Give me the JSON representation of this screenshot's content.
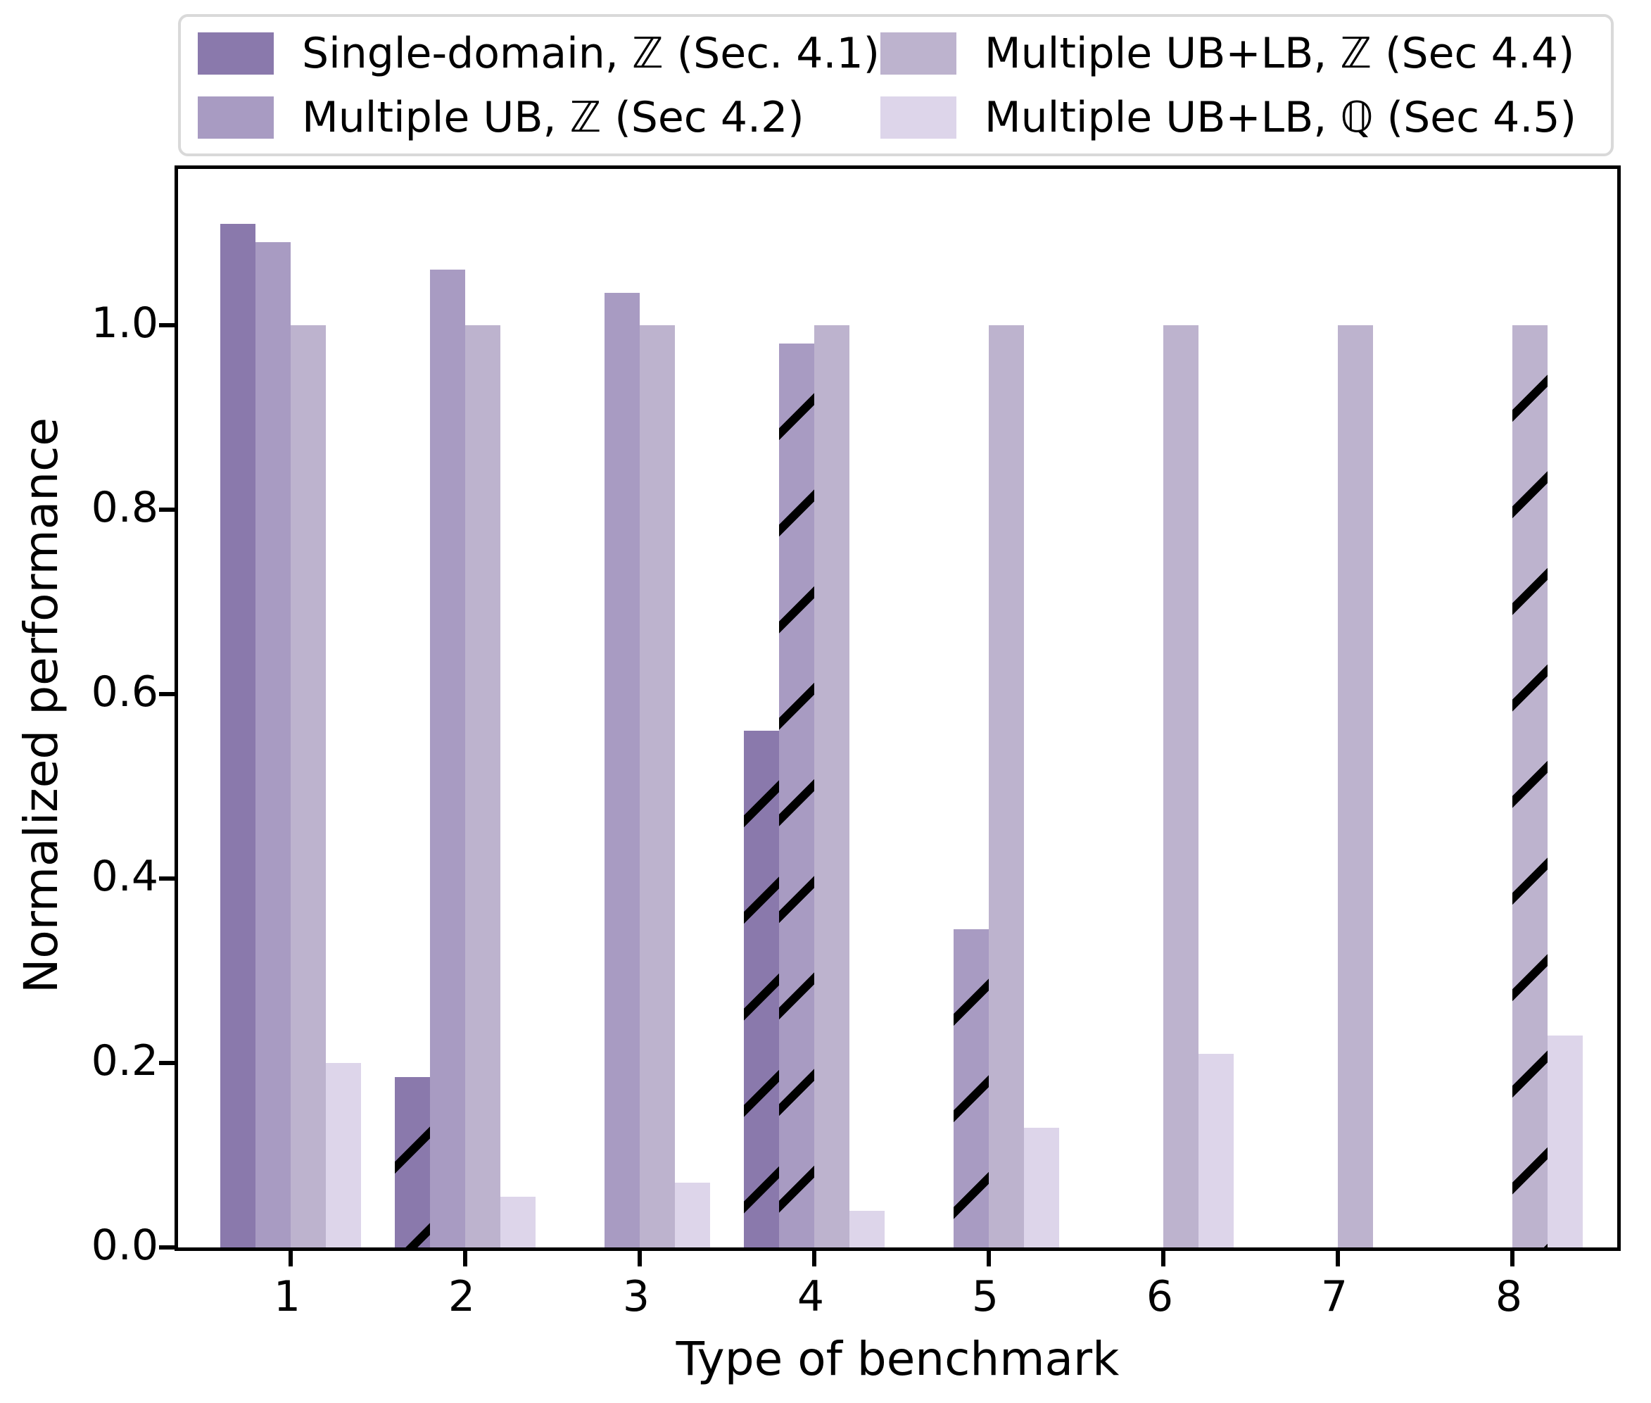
{
  "chart_data": {
    "type": "bar",
    "title": "",
    "xlabel": "Type of benchmark",
    "ylabel": "Normalized performance",
    "categories": [
      "1",
      "2",
      "3",
      "4",
      "5",
      "6",
      "7",
      "8"
    ],
    "ylim": [
      0.0,
      1.17
    ],
    "yticks": [
      "0.0",
      "0.2",
      "0.4",
      "0.6",
      "0.8",
      "1.0"
    ],
    "ytick_values": [
      0.0,
      0.2,
      0.4,
      0.6,
      0.8,
      1.0
    ],
    "grid": "off",
    "legend_position": "top, outside plot, 2 columns",
    "hatch_style": "/",
    "hatch_color": "#000000",
    "series": [
      {
        "name": "Single-domain, ℤ (Sec. 4.1)",
        "color": "#8a79ac",
        "values": [
          1.11,
          0.185,
          null,
          0.56,
          null,
          null,
          null,
          null
        ],
        "hatched": [
          false,
          true,
          false,
          true,
          false,
          false,
          false,
          false
        ]
      },
      {
        "name": "Multiple UB, ℤ (Sec 4.2)",
        "color": "#a89bc2",
        "values": [
          1.09,
          1.06,
          1.035,
          0.98,
          0.345,
          null,
          null,
          null
        ],
        "hatched": [
          false,
          false,
          false,
          true,
          true,
          false,
          false,
          false
        ]
      },
      {
        "name": "Multiple UB+LB, ℤ (Sec 4.4)",
        "color": "#bdb3ce",
        "values": [
          1.0,
          1.0,
          1.0,
          1.0,
          1.0,
          1.0,
          1.0,
          1.0
        ],
        "hatched": [
          false,
          false,
          false,
          false,
          false,
          false,
          false,
          true
        ]
      },
      {
        "name": "Multiple UB+LB, ℚ (Sec 4.5)",
        "color": "#ddd5ea",
        "values": [
          0.2,
          0.055,
          0.07,
          0.04,
          0.13,
          0.21,
          null,
          0.23
        ],
        "hatched": [
          false,
          false,
          false,
          false,
          false,
          false,
          false,
          false
        ]
      }
    ]
  }
}
